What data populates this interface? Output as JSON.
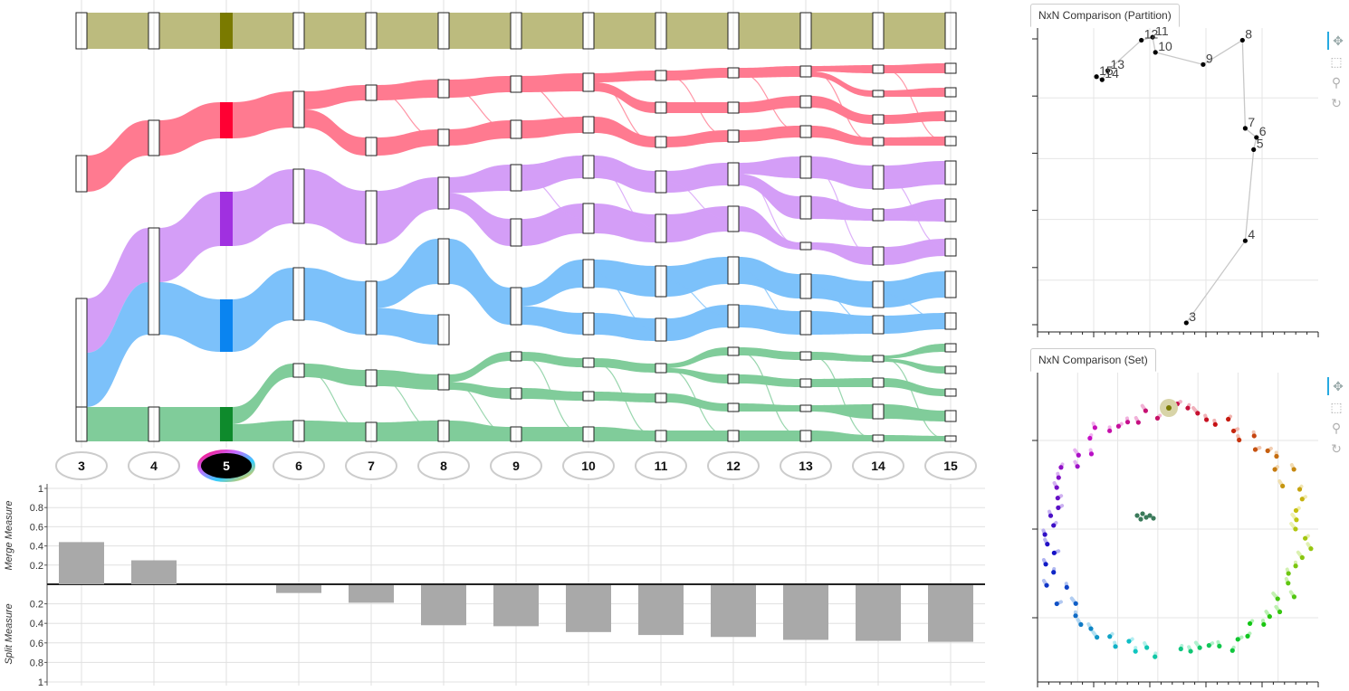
{
  "colors": {
    "olive": "#bcbb7e",
    "olive_dark": "#7a7a00",
    "red": "#ff7a90",
    "red_dark": "#ff0033",
    "purple": "#d49ef7",
    "purple_dark": "#a030e0",
    "blue": "#7cc1fa",
    "blue_dark": "#0a84f0",
    "green": "#80cc9a",
    "green_dark": "#0e8a2c",
    "bar": "#a9a9a9",
    "grid": "#e0e0e0",
    "tab_accent": "#26aae1"
  },
  "flow": {
    "k_labels": [
      "3",
      "4",
      "5",
      "6",
      "7",
      "8",
      "9",
      "10",
      "11",
      "12",
      "13",
      "14",
      "15"
    ],
    "selected_k": "5"
  },
  "measures": {
    "merge_label": "Merge Measure",
    "split_label": "Split Measure",
    "merge_ticks": [
      "1",
      "0.8",
      "0.6",
      "0.4",
      "0.2"
    ],
    "split_ticks": [
      "0.2",
      "0.4",
      "0.6",
      "0.8",
      "1"
    ],
    "merge_values": [
      0.44,
      0.25,
      0,
      0,
      0,
      0,
      0,
      0,
      0,
      0,
      0,
      0,
      0
    ],
    "split_values": [
      0,
      0,
      0,
      0.08,
      0.18,
      0.41,
      0.42,
      0.48,
      0.51,
      0.53,
      0.56,
      0.57,
      0.58
    ]
  },
  "partition_panel": {
    "title": "NxN Comparison (Partition)",
    "points": [
      {
        "label": "3",
        "x": 0.53,
        "y": 0.03
      },
      {
        "label": "4",
        "x": 0.74,
        "y": 0.3
      },
      {
        "label": "5",
        "x": 0.77,
        "y": 0.6
      },
      {
        "label": "6",
        "x": 0.78,
        "y": 0.64
      },
      {
        "label": "7",
        "x": 0.74,
        "y": 0.67
      },
      {
        "label": "8",
        "x": 0.73,
        "y": 0.96
      },
      {
        "label": "9",
        "x": 0.59,
        "y": 0.88
      },
      {
        "label": "10",
        "x": 0.42,
        "y": 0.92
      },
      {
        "label": "11",
        "x": 0.41,
        "y": 0.97
      },
      {
        "label": "12",
        "x": 0.37,
        "y": 0.96
      },
      {
        "label": "13",
        "x": 0.25,
        "y": 0.86
      },
      {
        "label": "14",
        "x": 0.23,
        "y": 0.83
      },
      {
        "label": "15",
        "x": 0.21,
        "y": 0.84
      }
    ]
  },
  "set_panel": {
    "title": "NxN Comparison (Set)"
  },
  "toolbar": [
    {
      "name": "pan-icon",
      "glyph": "✥",
      "active": true
    },
    {
      "name": "box-zoom-icon",
      "glyph": "⬚",
      "active": false
    },
    {
      "name": "wheel-zoom-icon",
      "glyph": "⚲",
      "active": false
    },
    {
      "name": "reset-icon",
      "glyph": "↻",
      "active": false
    }
  ]
}
